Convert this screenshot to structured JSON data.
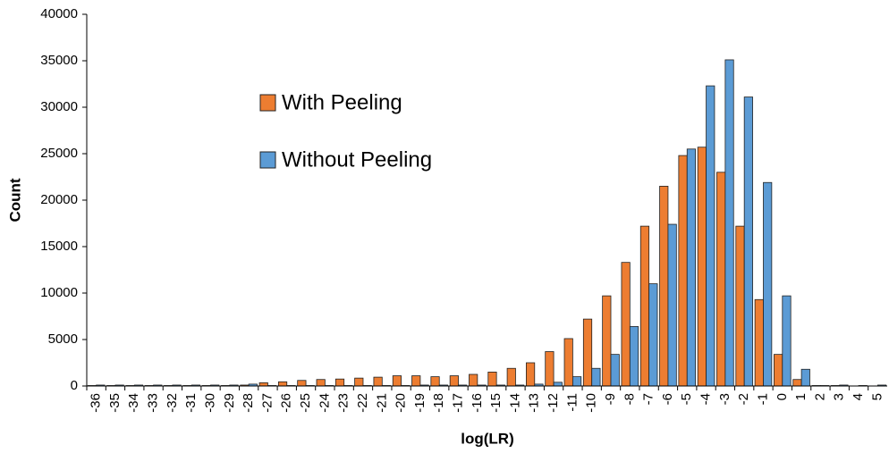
{
  "chart_data": {
    "type": "bar",
    "xlabel": "log(LR)",
    "ylabel": "Count",
    "categories": [
      "-36",
      "-35",
      "-34",
      "-33",
      "-32",
      "-31",
      "-30",
      "-29",
      "-28",
      "-27",
      "-26",
      "-25",
      "-24",
      "-23",
      "-22",
      "-21",
      "-20",
      "-19",
      "-18",
      "-17",
      "-16",
      "-15",
      "-14",
      "-13",
      "-12",
      "-11",
      "-10",
      "-9",
      "-8",
      "-7",
      "-6",
      "-5",
      "-4",
      "-3",
      "-2",
      "-1",
      "0",
      "1",
      "2",
      "3",
      "4",
      "5"
    ],
    "series": [
      {
        "name": "With Peeling",
        "color": "#ed7d31",
        "values": [
          50,
          50,
          50,
          50,
          50,
          50,
          50,
          50,
          100,
          350,
          450,
          600,
          700,
          750,
          850,
          950,
          1100,
          1100,
          1000,
          1100,
          1250,
          1500,
          1900,
          2500,
          3700,
          5100,
          7200,
          9700,
          13300,
          17200,
          21500,
          24800,
          25700,
          23000,
          17200,
          9300,
          3400,
          700,
          50,
          50,
          0,
          0
        ]
      },
      {
        "name": "Without Peeling",
        "color": "#5b9bd5",
        "values": [
          100,
          100,
          100,
          100,
          100,
          100,
          100,
          100,
          200,
          50,
          50,
          50,
          50,
          50,
          50,
          50,
          50,
          100,
          100,
          100,
          100,
          100,
          100,
          200,
          400,
          1000,
          1900,
          3400,
          6400,
          11000,
          17400,
          25500,
          32300,
          35100,
          31100,
          21900,
          9700,
          1800,
          50,
          100,
          50,
          100
        ]
      }
    ],
    "ylim": [
      0,
      40000
    ],
    "yticks": [
      0,
      5000,
      10000,
      15000,
      20000,
      25000,
      30000,
      35000,
      40000
    ],
    "grid": false,
    "legend": "upper left"
  }
}
